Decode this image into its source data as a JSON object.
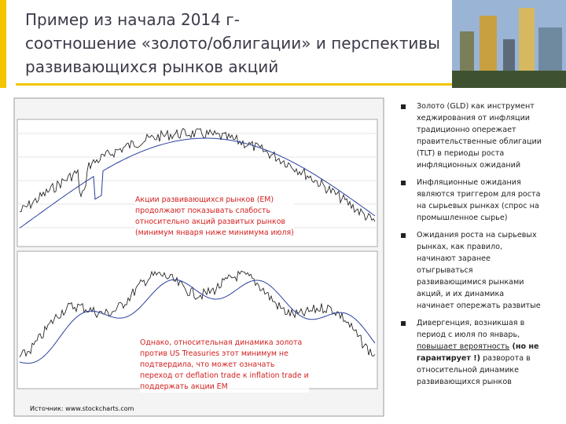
{
  "title": [
    "Пример из начала 2014 г-",
    "соотношение «золото/облигации» и перспективы",
    "развивающихся рынков акций"
  ],
  "annotations": [
    [
      "Акции развивающихся рынков (EM)",
      "продолжают показывать слабость",
      "относительно акций развитых рынков",
      "(минимум января ниже минимума июля)"
    ],
    [
      "Однако, относительная динамика золота",
      "против US Treasuries этот минимум не",
      "подтвердила, что может означать",
      "переход от deflation trade к inflation trade и",
      "поддержать акции EM"
    ]
  ],
  "source": "Источник: www.stockcharts.com",
  "bullets": [
    [
      "Золото (GLD) как инструмент",
      "хеджирования от инфляции",
      "традиционно опережает",
      "правительственные облигации",
      "(TLT) в периоды роста",
      "инфляционных ожиданий"
    ],
    [
      "Инфляционные ожидания",
      "являются триггером для роста",
      "на сырьевых рынках (спрос на",
      "промышленное сырье)"
    ],
    [
      "Ожидания роста на сырьевых",
      "рынках, как правило,",
      "начинают заранее",
      "отыгрываться",
      "развивающимися рынками",
      "акций, и их динамика",
      "начинает опережать развитые"
    ]
  ],
  "last_bullet": {
    "lines": [
      "Дивергенция, возникшая в",
      "период с июля по январь,"
    ],
    "underlined": "повышает вероятность",
    "bold_1": " (но не",
    "bold_2": "гарантирует !)",
    "rest": " разворота в",
    "tail": [
      "относительной динамике",
      "развивающихся рынков"
    ]
  }
}
